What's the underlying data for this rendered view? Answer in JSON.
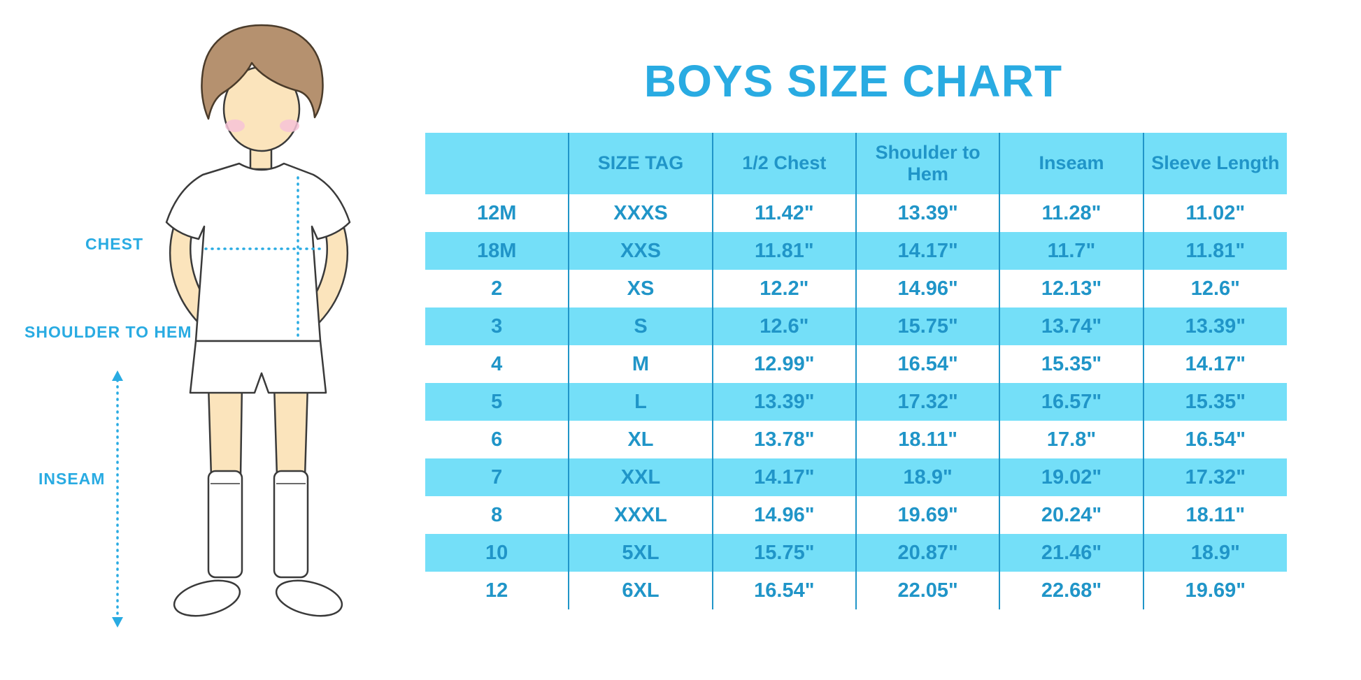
{
  "page": {
    "title": "BOYS SIZE CHART"
  },
  "figure": {
    "illustration": "boy-in-white-tee-shorts-and-knee-socks",
    "chest_label": "CHEST",
    "shoulder_to_hem_label": "SHOULDER TO HEM",
    "inseam_label": "INSEAM"
  },
  "colors": {
    "title": "#29ABE2",
    "table_text": "#2095C8",
    "table_band": "#74DFF8",
    "measure_line": "#29ABE2",
    "skin": "#FBE4BC",
    "hair": "#B5916F",
    "cheek": "#F6C3D7"
  },
  "chart_data": {
    "type": "table",
    "title": "BOYS SIZE CHART",
    "columns": [
      "",
      "SIZE TAG",
      "1/2 Chest",
      "Shoulder to Hem",
      "Inseam",
      "Sleeve Length"
    ],
    "rows": [
      [
        "12M",
        "XXXS",
        "11.42\"",
        "13.39\"",
        "11.28\"",
        "11.02\""
      ],
      [
        "18M",
        "XXS",
        "11.81\"",
        "14.17\"",
        "11.7\"",
        "11.81\""
      ],
      [
        "2",
        "XS",
        "12.2\"",
        "14.96\"",
        "12.13\"",
        "12.6\""
      ],
      [
        "3",
        "S",
        "12.6\"",
        "15.75\"",
        "13.74\"",
        "13.39\""
      ],
      [
        "4",
        "M",
        "12.99\"",
        "16.54\"",
        "15.35\"",
        "14.17\""
      ],
      [
        "5",
        "L",
        "13.39\"",
        "17.32\"",
        "16.57\"",
        "15.35\""
      ],
      [
        "6",
        "XL",
        "13.78\"",
        "18.11\"",
        "17.8\"",
        "16.54\""
      ],
      [
        "7",
        "XXL",
        "14.17\"",
        "18.9\"",
        "19.02\"",
        "17.32\""
      ],
      [
        "8",
        "XXXL",
        "14.96\"",
        "19.69\"",
        "20.24\"",
        "18.11\""
      ],
      [
        "10",
        "5XL",
        "15.75\"",
        "20.87\"",
        "21.46\"",
        "18.9\""
      ],
      [
        "12",
        "6XL",
        "16.54\"",
        "22.05\"",
        "22.68\"",
        "19.69\""
      ]
    ]
  }
}
